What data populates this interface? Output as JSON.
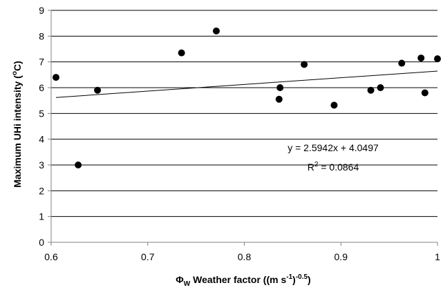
{
  "chart_data": {
    "type": "scatter",
    "title": "",
    "xlabel": {
      "symbol": "Φ",
      "symbol_sub": "W",
      "text": " Weather factor ((m s",
      "sup1": "-1",
      "mid": ")",
      "sup2": "-0.5",
      "end": ")"
    },
    "ylabel": {
      "prefix": "Maximum UHi intensity (",
      "sup": "o",
      "suffix": "C)"
    },
    "xlim": [
      0.6,
      1.0
    ],
    "ylim": [
      0,
      9
    ],
    "x_ticks": [
      "0.6",
      "0.7",
      "0.8",
      "0.9",
      "1"
    ],
    "y_ticks": [
      "0",
      "1",
      "2",
      "3",
      "4",
      "5",
      "6",
      "7",
      "8",
      "9"
    ],
    "grid": "horizontal",
    "legend": "none",
    "points": [
      {
        "x": 0.605,
        "y": 6.4
      },
      {
        "x": 0.628,
        "y": 3.0
      },
      {
        "x": 0.648,
        "y": 5.9
      },
      {
        "x": 0.735,
        "y": 7.35
      },
      {
        "x": 0.771,
        "y": 8.2
      },
      {
        "x": 0.836,
        "y": 5.55
      },
      {
        "x": 0.837,
        "y": 6.0
      },
      {
        "x": 0.862,
        "y": 6.9
      },
      {
        "x": 0.893,
        "y": 5.32
      },
      {
        "x": 0.931,
        "y": 5.9
      },
      {
        "x": 0.941,
        "y": 6.0
      },
      {
        "x": 0.963,
        "y": 6.95
      },
      {
        "x": 0.983,
        "y": 7.15
      },
      {
        "x": 0.987,
        "y": 5.8
      },
      {
        "x": 1.0,
        "y": 7.12
      }
    ],
    "trendline": {
      "slope": 2.5942,
      "intercept": 4.0497,
      "x_range": [
        0.605,
        1.0
      ]
    },
    "equation": "y = 2.5942x + 4.0497",
    "r2": {
      "label": "R",
      "sup": "2",
      "value": " = 0.0864"
    },
    "colors": {
      "points": "#000000",
      "line": "#000000",
      "grid": "#000000",
      "axis": "#808080"
    }
  }
}
